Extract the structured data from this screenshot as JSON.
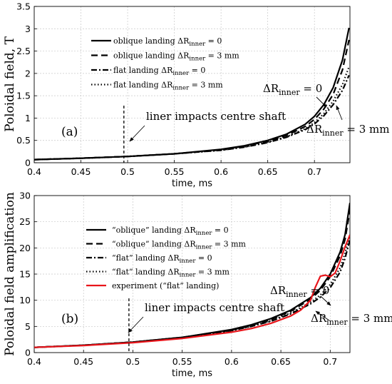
{
  "chart_data": [
    {
      "type": "line",
      "panel_label": "(a)",
      "xlabel": "time, ms",
      "ylabel": "Poloidal field, T",
      "xlim": [
        0.4,
        0.738
      ],
      "ylim": [
        0,
        3.5
      ],
      "x_ticks": [
        "0.4",
        "0.45",
        "0.5",
        "0.55",
        "0.6",
        "0.65",
        "0.7"
      ],
      "y_ticks": [
        "0",
        "0.5",
        "1",
        "1.5",
        "2",
        "2.5",
        "3",
        "3.5"
      ],
      "grid": true,
      "legend_position": "top-left",
      "series": [
        {
          "name": "oblique landing ΔR_inner = 0",
          "style": "solid",
          "color": "#000000",
          "x": [
            0.4,
            0.45,
            0.5,
            0.55,
            0.6,
            0.625,
            0.65,
            0.67,
            0.69,
            0.7,
            0.71,
            0.72,
            0.73,
            0.737
          ],
          "y": [
            0.07,
            0.1,
            0.14,
            0.2,
            0.3,
            0.38,
            0.5,
            0.64,
            0.86,
            1.04,
            1.3,
            1.68,
            2.3,
            3.02
          ]
        },
        {
          "name": "oblique landing ΔR_inner = 3 mm",
          "style": "dashed",
          "color": "#000000",
          "x": [
            0.4,
            0.45,
            0.5,
            0.55,
            0.6,
            0.625,
            0.65,
            0.67,
            0.69,
            0.7,
            0.71,
            0.72,
            0.73,
            0.737
          ],
          "y": [
            0.07,
            0.1,
            0.14,
            0.2,
            0.29,
            0.37,
            0.48,
            0.61,
            0.81,
            0.97,
            1.2,
            1.53,
            2.08,
            2.75
          ]
        },
        {
          "name": "flat landing ΔR_inner = 0",
          "style": "dashdot",
          "color": "#000000",
          "x": [
            0.4,
            0.45,
            0.5,
            0.55,
            0.6,
            0.625,
            0.65,
            0.67,
            0.69,
            0.7,
            0.71,
            0.72,
            0.73,
            0.737
          ],
          "y": [
            0.07,
            0.1,
            0.14,
            0.2,
            0.28,
            0.35,
            0.45,
            0.57,
            0.74,
            0.87,
            1.05,
            1.3,
            1.62,
            1.96
          ]
        },
        {
          "name": "flat landing ΔR_inner = 3 mm",
          "style": "dotted",
          "color": "#000000",
          "x": [
            0.4,
            0.45,
            0.5,
            0.55,
            0.6,
            0.625,
            0.65,
            0.67,
            0.69,
            0.7,
            0.71,
            0.72,
            0.73,
            0.737
          ],
          "y": [
            0.07,
            0.1,
            0.14,
            0.2,
            0.28,
            0.35,
            0.46,
            0.58,
            0.76,
            0.9,
            1.1,
            1.38,
            1.75,
            2.15
          ]
        }
      ],
      "annotations": {
        "impact_label": "liner impacts centre shaft",
        "impact_time": 0.496,
        "dr0_label_main": "ΔR",
        "dr0_label_sub": "inner",
        "dr0_label_tail": " = 0",
        "dr3_label_main": "ΔR",
        "dr3_label_sub": "inner",
        "dr3_label_tail": " = 3 mm"
      }
    },
    {
      "type": "line",
      "panel_label": "(b)",
      "xlabel": "time, ms",
      "ylabel": "Poloidal field amplification",
      "xlim": [
        0.4,
        0.72
      ],
      "ylim": [
        0,
        30
      ],
      "x_ticks": [
        "0.4",
        "0.45",
        "0.5",
        "0.55",
        "0.6",
        "0.65",
        "0.7"
      ],
      "y_ticks": [
        "0",
        "5",
        "10",
        "15",
        "20",
        "25",
        "30"
      ],
      "grid": true,
      "legend_position": "top-left",
      "series": [
        {
          "name": "“oblique” landing ΔR_inner = 0",
          "style": "solid",
          "color": "#000000",
          "x": [
            0.4,
            0.45,
            0.5,
            0.55,
            0.6,
            0.62,
            0.64,
            0.66,
            0.68,
            0.69,
            0.7,
            0.71,
            0.715,
            0.72
          ],
          "y": [
            1.0,
            1.4,
            2.0,
            2.9,
            4.4,
            5.3,
            6.5,
            8.1,
            10.5,
            12.3,
            15.0,
            19.2,
            22.5,
            28.6
          ]
        },
        {
          "name": "“oblique” landing ΔR_inner = 3 mm",
          "style": "dashed",
          "color": "#000000",
          "x": [
            0.4,
            0.45,
            0.5,
            0.55,
            0.6,
            0.62,
            0.64,
            0.66,
            0.68,
            0.69,
            0.7,
            0.71,
            0.715,
            0.72
          ],
          "y": [
            1.0,
            1.4,
            2.0,
            2.9,
            4.3,
            5.2,
            6.3,
            7.9,
            10.2,
            11.9,
            14.5,
            18.5,
            21.6,
            27.2
          ]
        },
        {
          "name": "“flat” landing ΔR_inner = 0",
          "style": "dashdot",
          "color": "#000000",
          "x": [
            0.4,
            0.45,
            0.5,
            0.55,
            0.6,
            0.62,
            0.64,
            0.66,
            0.68,
            0.69,
            0.7,
            0.71,
            0.715,
            0.72
          ],
          "y": [
            1.0,
            1.4,
            2.0,
            2.9,
            4.2,
            5.0,
            6.0,
            7.4,
            9.3,
            10.6,
            12.4,
            15.4,
            18.0,
            21.6
          ]
        },
        {
          "name": "“flat” landing ΔR_inner = 3 mm",
          "style": "dotted",
          "color": "#000000",
          "x": [
            0.4,
            0.45,
            0.5,
            0.55,
            0.6,
            0.62,
            0.64,
            0.66,
            0.68,
            0.69,
            0.7,
            0.71,
            0.715,
            0.72
          ],
          "y": [
            1.0,
            1.4,
            2.0,
            2.9,
            4.2,
            5.0,
            6.1,
            7.6,
            9.6,
            11.0,
            13.0,
            16.2,
            19.0,
            22.5
          ]
        },
        {
          "name": "experiment (“flat” landing)",
          "style": "solid",
          "color": "#e8151b",
          "x": [
            0.4,
            0.45,
            0.5,
            0.55,
            0.6,
            0.62,
            0.64,
            0.66,
            0.67,
            0.68,
            0.685,
            0.69,
            0.695,
            0.7,
            0.705,
            0.71,
            0.715,
            0.72
          ],
          "y": [
            1.0,
            1.35,
            1.9,
            2.7,
            3.9,
            4.6,
            5.6,
            7.0,
            8.1,
            10.0,
            12.5,
            14.6,
            14.8,
            14.5,
            15.2,
            17.5,
            20.2,
            22.5
          ]
        }
      ],
      "annotations": {
        "impact_label": "liner impacts centre shaft",
        "impact_time": 0.496,
        "dr0_label_main": "ΔR",
        "dr0_label_sub": "inner",
        "dr0_label_tail": " = 0",
        "dr3_label_main": "ΔR",
        "dr3_label_sub": "inner",
        "dr3_label_tail": " = 3 mm"
      }
    }
  ]
}
